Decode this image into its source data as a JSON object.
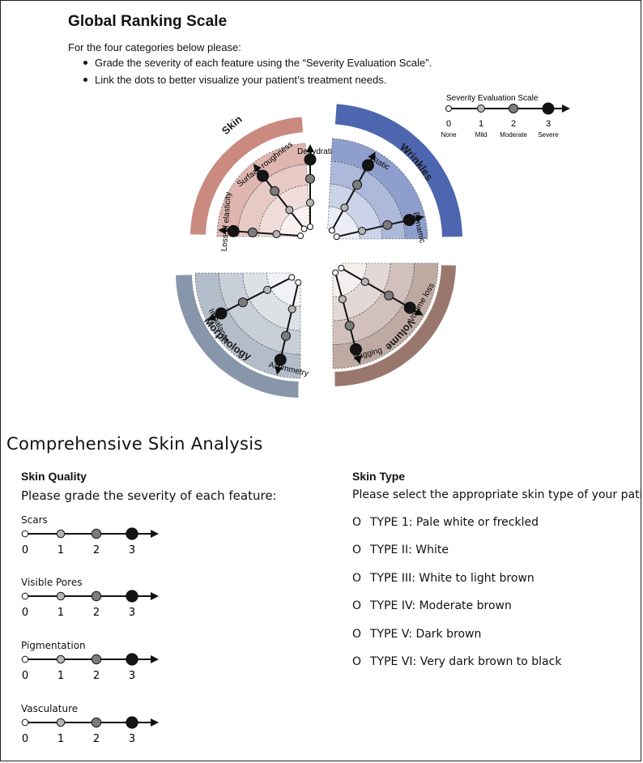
{
  "global_ranking": {
    "title": "Global Ranking Scale",
    "intro": "For the four categories below please:",
    "bullets": [
      "Grade the severity of each feature using the “Severity Evaluation Scale”.",
      "Link the dots to better visualize your patient’s treatment needs."
    ],
    "severity_scale": {
      "title": "Severity Evaluation Scale",
      "levels": [
        {
          "num": "0",
          "name": "None"
        },
        {
          "num": "1",
          "name": "Mild"
        },
        {
          "num": "2",
          "name": "Moderate"
        },
        {
          "num": "3",
          "name": "Severe"
        }
      ]
    },
    "categories": [
      {
        "name": "Skin",
        "color": "#ca8a80",
        "features": [
          "Dehydration",
          "Surface roughness",
          "Loss of elasticity"
        ]
      },
      {
        "name": "Wrinkles",
        "color": "#4c66b0",
        "features": [
          "Static",
          "Dynamic"
        ]
      },
      {
        "name": "Volume",
        "color": "#9a776d",
        "features": [
          "Volume loss",
          "Sagging"
        ]
      },
      {
        "name": "Morphology",
        "color": "#8796aa",
        "features": [
          "Asymmetry",
          "Imbalance"
        ]
      }
    ]
  },
  "skin_analysis": {
    "title": "Comprehensive Skin Analysis",
    "skin_quality": {
      "heading": "Skin Quality",
      "instruction": "Please  grade the severity of each feature:",
      "features": [
        "Scars",
        "Visible Pores",
        "Pigmentation",
        "Vasculature"
      ],
      "scale_labels": [
        "0",
        "1",
        "2",
        "3"
      ]
    },
    "skin_type": {
      "heading": "Skin Type",
      "instruction": "Please  select the appropriate skin type of your patient",
      "option_marker": "O",
      "options": [
        "TYPE  1: Pale white or freckled",
        "TYPE  II: White",
        "TYPE  III: White to light brown",
        "TYPE  IV: Moderate brown",
        "TYPE  V: Dark brown",
        "TYPE  VI: Very dark brown to black"
      ]
    }
  },
  "colors": {
    "level0": "#ffffff",
    "level1": "#b5b5b5",
    "level2": "#7c7c7c",
    "level3": "#141414"
  }
}
